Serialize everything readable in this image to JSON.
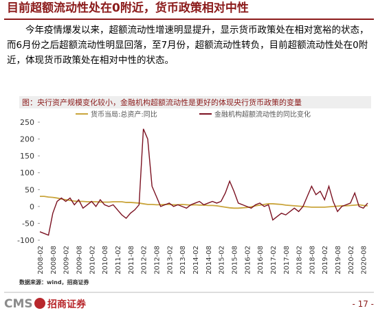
{
  "header": {
    "title": "目前超额流动性处在0附近，货币政策相对中性"
  },
  "body": {
    "paragraph": "今年疫情爆发以来，超额流动性增速明显提升，显示货币政策处在相对宽裕的状态，而6月份之后超额流动性明显回落，至7月份，超额流动性转负，目前超额流动性处在0附近，体现货币政策处在相对中性的状态。"
  },
  "chart_data": {
    "type": "line",
    "title": "图：央行资产规模变化较小，金融机构超额流动性是更好的体现央行货币政策的变量",
    "categories": [
      "2008-02",
      null,
      null,
      "2008-08",
      null,
      null,
      "2009-02",
      null,
      null,
      "2009-08",
      null,
      null,
      "2010-02",
      null,
      null,
      "2010-08",
      null,
      null,
      "2011-02",
      null,
      null,
      "2011-08",
      null,
      null,
      "2012-02",
      null,
      null,
      "2012-08",
      null,
      null,
      "2013-02",
      null,
      null,
      "2013-08",
      null,
      null,
      "2014-02",
      null,
      null,
      "2014-08",
      null,
      null,
      "2015-02",
      null,
      null,
      "2015-08",
      null,
      null,
      "2016-02",
      null,
      null,
      "2016-08",
      null,
      null,
      "2017-02",
      null,
      null,
      "2017-08",
      null,
      null,
      "2018-02",
      null,
      null,
      "2018-08",
      null,
      null,
      "2019-02",
      null,
      null,
      "2019-08",
      null,
      null,
      "2020-02",
      null,
      null,
      "2020-08",
      null
    ],
    "series": [
      {
        "name": "货币当局:总资产:同比",
        "color": "#c9a43a",
        "values": [
          30,
          30,
          28,
          27,
          25,
          22,
          20,
          18,
          16,
          15,
          15,
          14,
          14,
          14,
          13,
          13,
          13,
          14,
          14,
          14,
          12,
          12,
          11,
          10,
          8,
          6,
          6,
          5,
          5,
          6,
          6,
          5,
          5,
          6,
          5,
          4,
          5,
          4,
          4,
          3,
          3,
          2,
          0,
          -2,
          -4,
          -5,
          -5,
          -4,
          -3,
          -1,
          2,
          4,
          6,
          8,
          8,
          7,
          6,
          4,
          3,
          2,
          1,
          0,
          -1,
          -2,
          -2,
          -2,
          -2,
          -1,
          0,
          1,
          2,
          2,
          3,
          4,
          5,
          3,
          2
        ]
      },
      {
        "name": "金融机构超额流动性的同比变化",
        "color": "#7a1020",
        "values": [
          -75,
          -80,
          -85,
          -20,
          15,
          25,
          15,
          25,
          5,
          20,
          -5,
          5,
          15,
          0,
          20,
          5,
          0,
          5,
          -10,
          -25,
          -35,
          -20,
          -10,
          5,
          230,
          200,
          60,
          30,
          0,
          5,
          10,
          0,
          5,
          0,
          -5,
          5,
          10,
          15,
          5,
          10,
          15,
          10,
          15,
          40,
          75,
          45,
          10,
          5,
          0,
          -5,
          5,
          10,
          0,
          5,
          -40,
          -30,
          -20,
          -25,
          -15,
          -5,
          -15,
          0,
          30,
          60,
          35,
          45,
          20,
          60,
          15,
          -15,
          0,
          5,
          10,
          40,
          0,
          -5,
          10
        ]
      }
    ],
    "ylim": [
      -100,
      250
    ],
    "yticks": [
      -100,
      -50,
      0,
      50,
      100,
      150,
      200,
      250
    ],
    "source": "数据来源：wind，招商证券"
  },
  "footer": {
    "logo": "CMS",
    "company": "招商证券",
    "page": "- 17 -"
  }
}
